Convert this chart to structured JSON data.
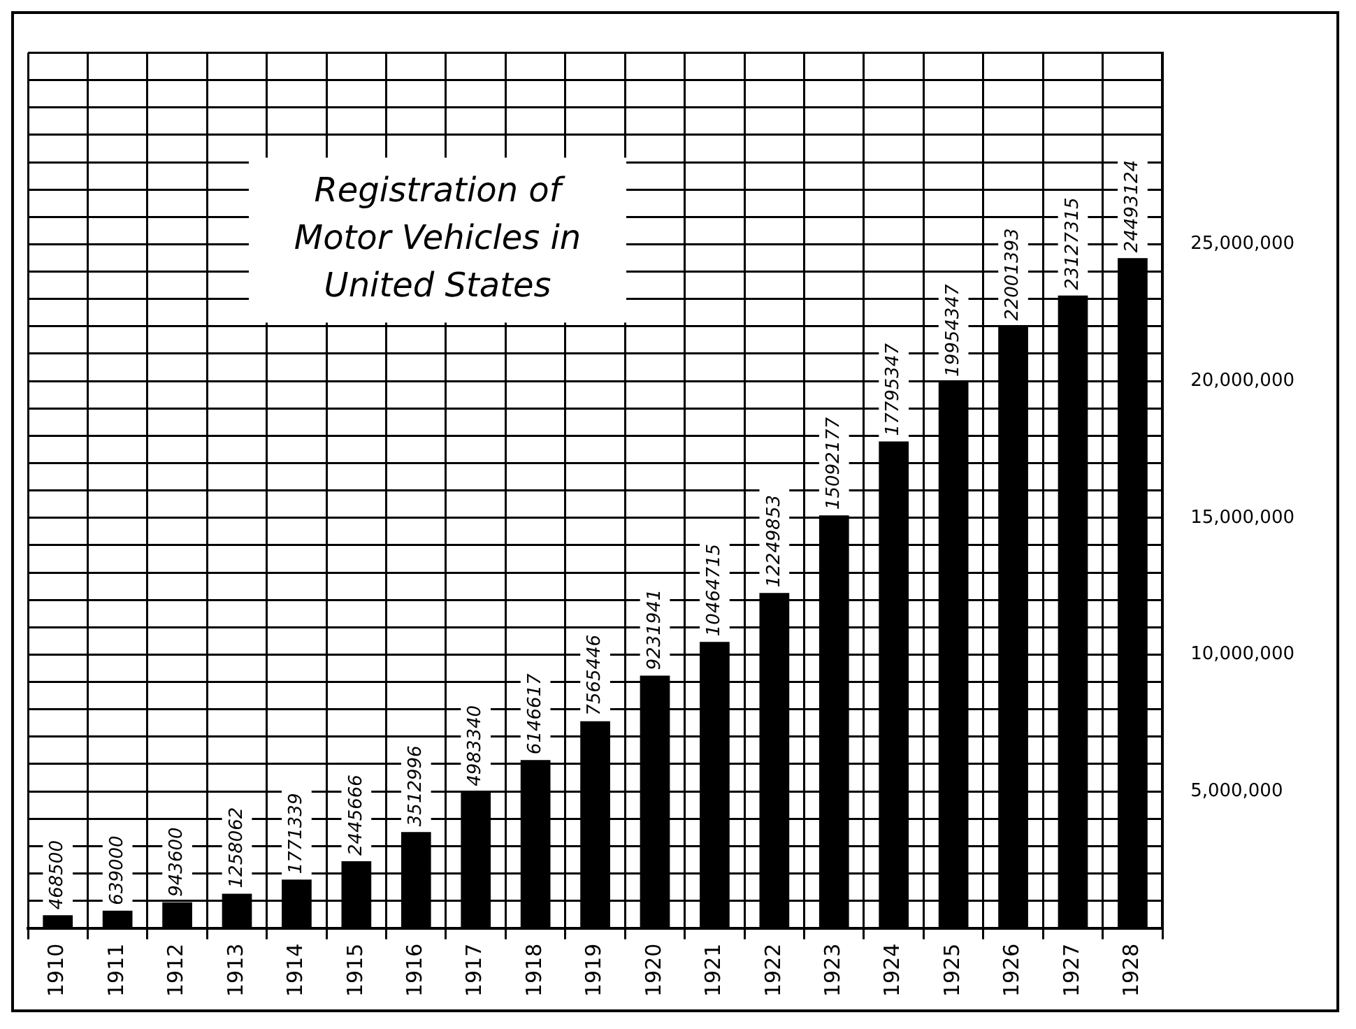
{
  "chart_data": {
    "type": "bar",
    "title": "Registration of Motor Vehicles in United States",
    "categories": [
      "1910",
      "1911",
      "1912",
      "1913",
      "1914",
      "1915",
      "1916",
      "1917",
      "1918",
      "1919",
      "1920",
      "1921",
      "1922",
      "1923",
      "1924",
      "1925",
      "1926",
      "1927",
      "1928"
    ],
    "values": [
      468500,
      639000,
      943600,
      1258062,
      1771339,
      2445666,
      3512996,
      4983340,
      6146617,
      7565446,
      9231941,
      10464715,
      12249853,
      15092177,
      17795347,
      19954347,
      22001393,
      23127315,
      24493124
    ],
    "color": "#000000",
    "ylim": [
      0,
      32000000
    ],
    "yticks": [
      {
        "value": 0,
        "label": null
      },
      {
        "value": 1000000,
        "label": null
      },
      {
        "value": 2000000,
        "label": null
      },
      {
        "value": 3000000,
        "label": null
      },
      {
        "value": 4000000,
        "label": null
      },
      {
        "value": 5000000,
        "label": "5,000,000"
      },
      {
        "value": 6000000,
        "label": null
      },
      {
        "value": 7000000,
        "label": null
      },
      {
        "value": 8000000,
        "label": null
      },
      {
        "value": 9000000,
        "label": null
      },
      {
        "value": 10000000,
        "label": "10,000,000"
      },
      {
        "value": 11000000,
        "label": null
      },
      {
        "value": 12000000,
        "label": null
      },
      {
        "value": 13000000,
        "label": null
      },
      {
        "value": 14000000,
        "label": null
      },
      {
        "value": 15000000,
        "label": "15,000,000"
      },
      {
        "value": 16000000,
        "label": null
      },
      {
        "value": 17000000,
        "label": null
      },
      {
        "value": 18000000,
        "label": null
      },
      {
        "value": 19000000,
        "label": null
      },
      {
        "value": 20000000,
        "label": "20,000,000"
      },
      {
        "value": 21000000,
        "label": null
      },
      {
        "value": 22000000,
        "label": null
      },
      {
        "value": 23000000,
        "label": null
      },
      {
        "value": 24000000,
        "label": null
      },
      {
        "value": 25000000,
        "label": "25,000,000"
      },
      {
        "value": 26000000,
        "label": null
      },
      {
        "value": 27000000,
        "label": null
      },
      {
        "value": 28000000,
        "label": null
      },
      {
        "value": 29000000,
        "label": null
      },
      {
        "value": 30000000,
        "label": null
      },
      {
        "value": 31000000,
        "label": null
      },
      {
        "value": 32000000,
        "label": null
      }
    ],
    "grid": true,
    "data_labels": true,
    "legend": false
  }
}
